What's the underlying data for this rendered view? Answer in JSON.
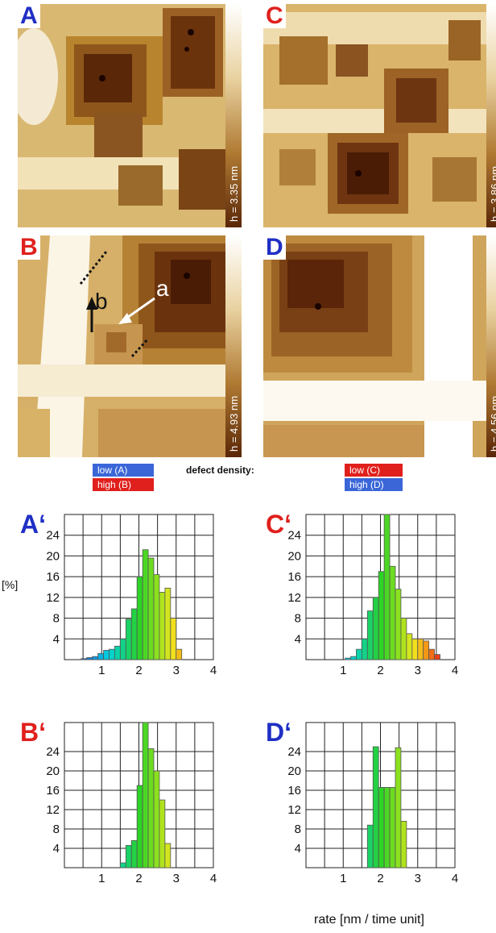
{
  "panels": [
    {
      "letter": "A",
      "color": "#1f2fc4",
      "height_label": "h = 3.35 nm"
    },
    {
      "letter": "C",
      "color": "#e0201c",
      "height_label": "h = 3.86 nm"
    },
    {
      "letter": "B",
      "color": "#e0201c",
      "height_label": "h = 4.93 nm"
    },
    {
      "letter": "D",
      "color": "#1f2fc4",
      "height_label": "h = 4.56 nm"
    }
  ],
  "annotations": {
    "a": "a",
    "b": "b"
  },
  "legend": {
    "title": "defect density:",
    "left": [
      {
        "text": "low  (A)",
        "color": "#3a66d8"
      },
      {
        "text": "high (B)",
        "color": "#e0201c"
      }
    ],
    "right": [
      {
        "text": "low  (C)",
        "color": "#e0201c"
      },
      {
        "text": "high (D)",
        "color": "#3a66d8"
      }
    ]
  },
  "y_unit_label": "[%]",
  "x_axis_title": "rate [nm / time unit]",
  "chart_data": [
    {
      "type": "bar",
      "label": "A‘",
      "label_color": "#1f2fc4",
      "xlim": [
        0,
        4
      ],
      "ylim": [
        0,
        28
      ],
      "xticks": [
        1,
        2,
        3,
        4
      ],
      "yticks": [
        4,
        8,
        12,
        16,
        20,
        24
      ],
      "bin_width": 0.15,
      "bins": [
        {
          "x": 0.45,
          "y": 0.2
        },
        {
          "x": 0.6,
          "y": 0.4
        },
        {
          "x": 0.75,
          "y": 0.6
        },
        {
          "x": 0.9,
          "y": 1.2
        },
        {
          "x": 1.05,
          "y": 1.8
        },
        {
          "x": 1.2,
          "y": 2.0
        },
        {
          "x": 1.35,
          "y": 2.6
        },
        {
          "x": 1.5,
          "y": 4.0
        },
        {
          "x": 1.65,
          "y": 7.8
        },
        {
          "x": 1.8,
          "y": 9.8
        },
        {
          "x": 1.95,
          "y": 16.0
        },
        {
          "x": 2.1,
          "y": 21.2
        },
        {
          "x": 2.25,
          "y": 19.6
        },
        {
          "x": 2.4,
          "y": 16.4
        },
        {
          "x": 2.55,
          "y": 13.0
        },
        {
          "x": 2.7,
          "y": 13.8
        },
        {
          "x": 2.85,
          "y": 8.0
        },
        {
          "x": 3.0,
          "y": 2.0
        }
      ]
    },
    {
      "type": "bar",
      "label": "C‘",
      "label_color": "#e0201c",
      "xlim": [
        0,
        4
      ],
      "ylim": [
        0,
        28
      ],
      "xticks": [
        1,
        2,
        3,
        4
      ],
      "yticks": [
        4,
        8,
        12,
        16,
        20,
        24
      ],
      "bin_width": 0.15,
      "bins": [
        {
          "x": 1.05,
          "y": 0.3
        },
        {
          "x": 1.2,
          "y": 0.6
        },
        {
          "x": 1.35,
          "y": 2.0
        },
        {
          "x": 1.5,
          "y": 4.0
        },
        {
          "x": 1.65,
          "y": 9.4
        },
        {
          "x": 1.8,
          "y": 12.0
        },
        {
          "x": 1.95,
          "y": 17.0
        },
        {
          "x": 2.1,
          "y": 28.0
        },
        {
          "x": 2.25,
          "y": 18.0
        },
        {
          "x": 2.4,
          "y": 13.6
        },
        {
          "x": 2.55,
          "y": 8.0
        },
        {
          "x": 2.7,
          "y": 5.0
        },
        {
          "x": 2.85,
          "y": 4.0
        },
        {
          "x": 3.0,
          "y": 4.0
        },
        {
          "x": 3.15,
          "y": 3.6
        },
        {
          "x": 3.3,
          "y": 2.0
        },
        {
          "x": 3.45,
          "y": 1.0
        }
      ]
    },
    {
      "type": "bar",
      "label": "B‘",
      "label_color": "#e0201c",
      "xlim": [
        0,
        4
      ],
      "ylim": [
        0,
        30
      ],
      "xticks": [
        1,
        2,
        3,
        4
      ],
      "yticks": [
        4,
        8,
        12,
        16,
        20,
        24
      ],
      "bin_width": 0.15,
      "bins": [
        {
          "x": 1.5,
          "y": 1.0
        },
        {
          "x": 1.65,
          "y": 4.6
        },
        {
          "x": 1.8,
          "y": 5.6
        },
        {
          "x": 1.95,
          "y": 17.0
        },
        {
          "x": 2.1,
          "y": 30.0
        },
        {
          "x": 2.25,
          "y": 24.6
        },
        {
          "x": 2.4,
          "y": 20.0
        },
        {
          "x": 2.55,
          "y": 14.0
        },
        {
          "x": 2.7,
          "y": 5.0
        }
      ]
    },
    {
      "type": "bar",
      "label": "D‘",
      "label_color": "#1f2fc4",
      "xlim": [
        0,
        4
      ],
      "ylim": [
        0,
        30
      ],
      "xticks": [
        1,
        2,
        3,
        4
      ],
      "yticks": [
        4,
        8,
        12,
        16,
        20,
        24
      ],
      "bin_width": 0.15,
      "bins": [
        {
          "x": 1.65,
          "y": 8.8
        },
        {
          "x": 1.8,
          "y": 25.0
        },
        {
          "x": 1.95,
          "y": 16.6
        },
        {
          "x": 2.1,
          "y": 16.6
        },
        {
          "x": 2.25,
          "y": 16.6
        },
        {
          "x": 2.4,
          "y": 24.8
        },
        {
          "x": 2.55,
          "y": 9.6
        }
      ]
    }
  ]
}
